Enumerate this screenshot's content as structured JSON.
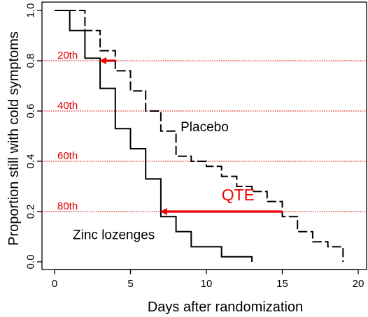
{
  "chart_data": {
    "type": "line",
    "step": true,
    "xlabel": "Days after randomization",
    "ylabel": "Proportion still with cold symptoms",
    "xlim": [
      0,
      20
    ],
    "ylim": [
      0,
      1
    ],
    "xticks": [
      0,
      5,
      10,
      15,
      20
    ],
    "yticks": [
      0.0,
      0.2,
      0.4,
      0.6,
      0.8,
      1.0
    ],
    "xtick_labels": [
      "0",
      "5",
      "10",
      "15",
      "20"
    ],
    "ytick_labels": [
      "0.0",
      "0.2",
      "0.4",
      "0.6",
      "0.8",
      "1.0"
    ],
    "series": [
      {
        "name": "Placebo",
        "line_style": "dashed",
        "color": "#000000",
        "x": [
          0,
          2,
          2,
          3,
          3,
          4,
          4,
          5,
          5,
          6,
          6,
          7,
          7,
          8,
          8,
          9,
          9,
          10,
          10,
          11,
          11,
          12,
          12,
          13,
          13,
          14,
          14,
          15,
          15,
          16,
          16,
          17,
          17,
          18,
          18,
          19,
          19
        ],
        "y": [
          1.0,
          1.0,
          0.92,
          0.92,
          0.84,
          0.84,
          0.76,
          0.76,
          0.68,
          0.68,
          0.6,
          0.6,
          0.52,
          0.52,
          0.42,
          0.42,
          0.4,
          0.4,
          0.38,
          0.38,
          0.34,
          0.34,
          0.3,
          0.3,
          0.28,
          0.28,
          0.24,
          0.24,
          0.18,
          0.18,
          0.12,
          0.12,
          0.08,
          0.08,
          0.06,
          0.06,
          0.0
        ]
      },
      {
        "name": "Zinc lozenges",
        "line_style": "solid",
        "color": "#000000",
        "x": [
          0,
          1,
          1,
          2,
          2,
          3,
          3,
          4,
          4,
          5,
          5,
          6,
          6,
          7,
          7,
          8,
          8,
          9,
          9,
          11,
          11,
          13,
          13
        ],
        "y": [
          1.0,
          1.0,
          0.92,
          0.92,
          0.81,
          0.81,
          0.69,
          0.69,
          0.53,
          0.53,
          0.45,
          0.45,
          0.33,
          0.33,
          0.18,
          0.18,
          0.12,
          0.12,
          0.06,
          0.06,
          0.02,
          0.02,
          0.0
        ]
      }
    ],
    "reference_lines": [
      {
        "y": 0.8,
        "label": "20th"
      },
      {
        "y": 0.6,
        "label": "40th"
      },
      {
        "y": 0.4,
        "label": "60th"
      },
      {
        "y": 0.2,
        "label": "80th"
      }
    ],
    "arrows": [
      {
        "from_x": 4,
        "to_x": 3,
        "y": 0.8,
        "label": ""
      },
      {
        "from_x": 15,
        "to_x": 7,
        "y": 0.2,
        "label": "QTE"
      }
    ],
    "series_labels": [
      {
        "text": "Placebo",
        "x": 8.3,
        "y": 0.52
      },
      {
        "text": "Zinc lozenges",
        "x": 1.2,
        "y": 0.09
      },
      {
        "text": "QTE",
        "x": 11.0,
        "y": 0.245
      }
    ],
    "colors": {
      "reference": "#e00000",
      "arrow": "#ee0000",
      "line": "#000000"
    },
    "grid": false,
    "legend": "none"
  }
}
